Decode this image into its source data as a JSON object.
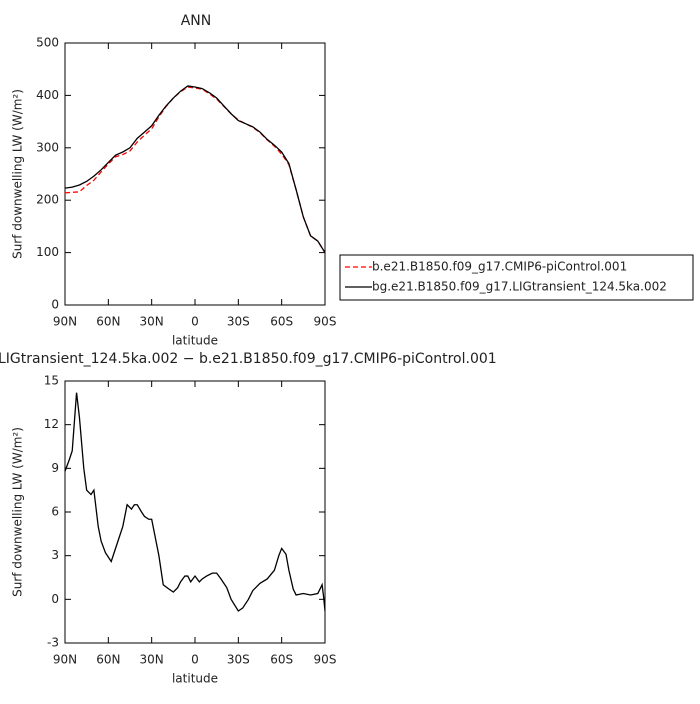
{
  "chart_data": [
    {
      "type": "line",
      "title": "ANN",
      "xlabel": "latitude",
      "ylabel": "Surf downwelling LW (W/m²)",
      "x": [
        90,
        85,
        80,
        75,
        70,
        65,
        60,
        55,
        50,
        45,
        40,
        35,
        30,
        25,
        20,
        15,
        10,
        5,
        0,
        -5,
        -10,
        -15,
        -20,
        -25,
        -30,
        -35,
        -40,
        -45,
        -50,
        -55,
        -60,
        -65,
        -70,
        -75,
        -80,
        -85,
        -90
      ],
      "xlim": [
        90,
        -90
      ],
      "xticks": [
        {
          "value": 90,
          "label": "90N"
        },
        {
          "value": 60,
          "label": "60N"
        },
        {
          "value": 30,
          "label": "30N"
        },
        0,
        {
          "value": -30,
          "label": "30S"
        },
        {
          "value": -60,
          "label": "60S"
        },
        {
          "value": -90,
          "label": "90S"
        }
      ],
      "ylim": [
        0,
        500
      ],
      "yticks": [
        0,
        100,
        200,
        300,
        400,
        500
      ],
      "series": [
        {
          "name": "b.e21.B1850.f09_g17.CMIP6-piControl.001",
          "color": "#ff0000",
          "linestyle": "dashed",
          "values": [
            214,
            215,
            216,
            228,
            238,
            254,
            269,
            283,
            287,
            294,
            311,
            324,
            336,
            359,
            379,
            395,
            407,
            416,
            414,
            412,
            403,
            393,
            379,
            365,
            353,
            346,
            339,
            329,
            315,
            303,
            288,
            268,
            220,
            168,
            132,
            122,
            100
          ]
        },
        {
          "name": "bg.e21.B1850.f09_g17.LIGtransient_124.5ka.002",
          "color": "#000000",
          "linestyle": "solid",
          "values": [
            223,
            225,
            229,
            236,
            246,
            258,
            272,
            286,
            292,
            300,
            318,
            330,
            342,
            362,
            380,
            395,
            408,
            418,
            416,
            413,
            405,
            395,
            380,
            365,
            352,
            346,
            340,
            330,
            316,
            305,
            292,
            270,
            220,
            168,
            132,
            122,
            100
          ]
        }
      ],
      "legend": "right"
    },
    {
      "type": "line",
      "title": "LIGtransient_124.5ka.002 − b.e21.B1850.f09_g17.CMIP6-piControl.001",
      "xlabel": "latitude",
      "ylabel": "Surf downwelling LW (W/m²)",
      "x": [
        90,
        87,
        85,
        82,
        80,
        77,
        75,
        72,
        70,
        67,
        65,
        62,
        58,
        55,
        50,
        47,
        44,
        42,
        40,
        37,
        35,
        32,
        30,
        25,
        22,
        18,
        15,
        12,
        10,
        7,
        5,
        3,
        0,
        -3,
        -5,
        -8,
        -12,
        -15,
        -18,
        -22,
        -25,
        -30,
        -33,
        -37,
        -40,
        -45,
        -50,
        -55,
        -58,
        -60,
        -63,
        -65,
        -68,
        -70,
        -75,
        -80,
        -85,
        -88,
        -89,
        -90
      ],
      "xlim": [
        90,
        -90
      ],
      "xticks": [
        {
          "value": 90,
          "label": "90N"
        },
        {
          "value": 60,
          "label": "60N"
        },
        {
          "value": 30,
          "label": "30N"
        },
        0,
        {
          "value": -30,
          "label": "30S"
        },
        {
          "value": -60,
          "label": "60S"
        },
        {
          "value": -90,
          "label": "90S"
        }
      ],
      "ylim": [
        -3,
        15
      ],
      "yticks": [
        -3,
        0,
        3,
        6,
        9,
        12,
        15
      ],
      "series": [
        {
          "color": "#000000",
          "linestyle": "solid",
          "values": [
            8.8,
            9.6,
            10.2,
            14.2,
            12.5,
            9,
            7.5,
            7.2,
            7.5,
            5,
            4,
            3.2,
            2.6,
            3.5,
            5,
            6.5,
            6.2,
            6.5,
            6.5,
            6,
            5.7,
            5.5,
            5.5,
            3,
            1,
            0.7,
            0.5,
            0.8,
            1.2,
            1.6,
            1.6,
            1.2,
            1.6,
            1.2,
            1.4,
            1.6,
            1.8,
            1.8,
            1.4,
            0.8,
            0,
            -0.8,
            -0.6,
            0,
            0.6,
            1.1,
            1.4,
            2,
            3,
            3.5,
            3.1,
            2,
            0.7,
            0.3,
            0.4,
            0.3,
            0.4,
            1,
            0.2,
            -0.8
          ]
        }
      ]
    }
  ]
}
